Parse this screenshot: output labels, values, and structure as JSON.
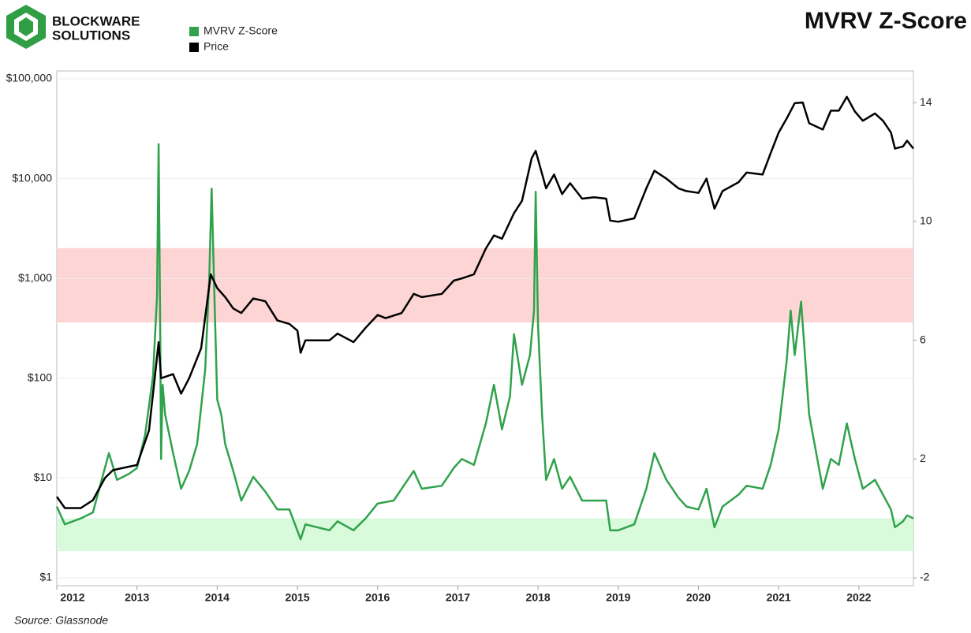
{
  "chart_data": {
    "type": "line",
    "title": "MVRV Z-Score",
    "logo": [
      "BLOCKWARE",
      "SOLUTIONS"
    ],
    "source": "Source: Glassnode",
    "xlim": [
      2012.0,
      2022.68
    ],
    "xticks": [
      2012,
      2013,
      2014,
      2015,
      2016,
      2017,
      2018,
      2019,
      2020,
      2021,
      2022
    ],
    "ylog": true,
    "ylim": [
      1,
      100000
    ],
    "yticks": [
      {
        "value": 1,
        "label": "$1"
      },
      {
        "value": 10,
        "label": "$10"
      },
      {
        "value": 100,
        "label": "$100"
      },
      {
        "value": 1000,
        "label": "$1,000"
      },
      {
        "value": 10000,
        "label": "$10,000"
      },
      {
        "value": 100000,
        "label": "$100,000"
      }
    ],
    "y2lim": [
      -2,
      14.8
    ],
    "y2ticks": [
      -2,
      2,
      6,
      10,
      14
    ],
    "grid": true,
    "legend": "top-left",
    "bands": [
      {
        "range": [
          6.6,
          9.1
        ],
        "color": "#fdd5d5",
        "axis": "y2"
      },
      {
        "range": [
          -1.1,
          0
        ],
        "color": "#d9fbdc",
        "axis": "y2"
      }
    ],
    "series": [
      {
        "name": "MVRV Z-Score",
        "color": "#31a24c",
        "axis": "y2",
        "x": [
          2012.0,
          2012.1,
          2012.3,
          2012.45,
          2012.55,
          2012.65,
          2012.75,
          2012.9,
          2013.0,
          2013.1,
          2013.2,
          2013.25,
          2013.27,
          2013.29,
          2013.3,
          2013.32,
          2013.35,
          2013.45,
          2013.55,
          2013.65,
          2013.75,
          2013.85,
          2013.9,
          2013.93,
          2013.96,
          2014.0,
          2014.05,
          2014.1,
          2014.2,
          2014.3,
          2014.45,
          2014.6,
          2014.75,
          2014.9,
          2015.04,
          2015.1,
          2015.4,
          2015.5,
          2015.7,
          2015.85,
          2016.0,
          2016.2,
          2016.45,
          2016.55,
          2016.8,
          2016.95,
          2017.05,
          2017.2,
          2017.35,
          2017.45,
          2017.55,
          2017.65,
          2017.7,
          2017.8,
          2017.9,
          2017.95,
          2017.97,
          2018.0,
          2018.05,
          2018.1,
          2018.2,
          2018.3,
          2018.4,
          2018.55,
          2018.7,
          2018.85,
          2018.9,
          2019.0,
          2019.2,
          2019.35,
          2019.45,
          2019.6,
          2019.75,
          2019.85,
          2020.0,
          2020.1,
          2020.2,
          2020.3,
          2020.5,
          2020.6,
          2020.8,
          2020.9,
          2021.0,
          2021.1,
          2021.15,
          2021.2,
          2021.28,
          2021.32,
          2021.38,
          2021.55,
          2021.65,
          2021.75,
          2021.85,
          2021.95,
          2022.05,
          2022.2,
          2022.3,
          2022.4,
          2022.45,
          2022.55,
          2022.6,
          2022.68
        ],
        "values": [
          0.4,
          -0.2,
          0,
          0.2,
          1.2,
          2.2,
          1.3,
          1.5,
          1.7,
          2.8,
          4.8,
          7.5,
          12.6,
          6,
          2,
          4.5,
          3.5,
          2.2,
          1.0,
          1.6,
          2.5,
          5,
          8,
          11.1,
          8,
          4,
          3.5,
          2.5,
          1.6,
          0.6,
          1.4,
          0.9,
          0.3,
          0.3,
          -0.7,
          -0.2,
          -0.4,
          -0.1,
          -0.4,
          0,
          0.5,
          0.6,
          1.6,
          1.0,
          1.1,
          1.7,
          2.0,
          1.8,
          3.2,
          4.5,
          3.0,
          4.1,
          6.2,
          4.5,
          5.5,
          7,
          11.0,
          6.5,
          3.5,
          1.3,
          2.0,
          1.0,
          1.4,
          0.6,
          0.6,
          0.6,
          -0.4,
          -0.4,
          -0.2,
          1.0,
          2.2,
          1.3,
          0.7,
          0.4,
          0.3,
          1.0,
          -0.3,
          0.4,
          0.8,
          1.1,
          1.0,
          1.8,
          3.0,
          5.3,
          7.0,
          5.5,
          7.3,
          5.8,
          3.5,
          1.0,
          2.0,
          1.8,
          3.2,
          2.0,
          1.0,
          1.3,
          0.8,
          0.3,
          -0.3,
          -0.1,
          0.1,
          0.0
        ]
      },
      {
        "name": "Price",
        "color": "#000000",
        "x": [
          2012.0,
          2012.1,
          2012.3,
          2012.45,
          2012.6,
          2012.7,
          2012.9,
          2013.0,
          2013.15,
          2013.27,
          2013.3,
          2013.45,
          2013.55,
          2013.65,
          2013.8,
          2013.92,
          2014.0,
          2014.1,
          2014.2,
          2014.3,
          2014.45,
          2014.6,
          2014.75,
          2014.9,
          2015.0,
          2015.04,
          2015.1,
          2015.4,
          2015.5,
          2015.7,
          2015.85,
          2016.0,
          2016.1,
          2016.3,
          2016.45,
          2016.55,
          2016.8,
          2016.95,
          2017.05,
          2017.2,
          2017.35,
          2017.45,
          2017.55,
          2017.7,
          2017.8,
          2017.92,
          2017.97,
          2018.1,
          2018.2,
          2018.3,
          2018.4,
          2018.55,
          2018.7,
          2018.85,
          2018.9,
          2019.0,
          2019.2,
          2019.35,
          2019.45,
          2019.6,
          2019.75,
          2019.85,
          2020.0,
          2020.1,
          2020.2,
          2020.3,
          2020.5,
          2020.6,
          2020.8,
          2020.9,
          2021.0,
          2021.1,
          2021.2,
          2021.3,
          2021.38,
          2021.55,
          2021.65,
          2021.75,
          2021.85,
          2021.95,
          2022.05,
          2022.2,
          2022.3,
          2022.4,
          2022.45,
          2022.55,
          2022.6,
          2022.68
        ],
        "values": [
          6.5,
          5,
          5,
          6,
          10,
          12,
          13,
          13.5,
          30,
          230,
          100,
          110,
          70,
          100,
          200,
          1100,
          800,
          650,
          500,
          450,
          630,
          590,
          380,
          350,
          300,
          180,
          240,
          240,
          280,
          230,
          320,
          430,
          400,
          450,
          700,
          650,
          700,
          950,
          1000,
          1100,
          2000,
          2700,
          2500,
          4500,
          6000,
          16000,
          19000,
          8000,
          11000,
          7000,
          9000,
          6300,
          6500,
          6300,
          3800,
          3700,
          4000,
          8000,
          12000,
          10000,
          8000,
          7500,
          7200,
          10000,
          5000,
          7500,
          9200,
          11500,
          11000,
          18000,
          29000,
          40000,
          57000,
          58000,
          36000,
          31000,
          48000,
          48000,
          66000,
          47000,
          38000,
          45000,
          38000,
          29000,
          20000,
          21000,
          24000,
          20000
        ]
      }
    ]
  }
}
